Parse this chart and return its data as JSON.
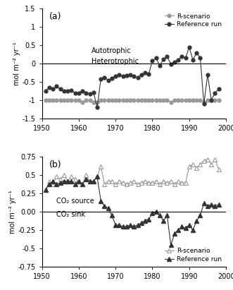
{
  "panel_a": {
    "label": "(a)",
    "ylabel": "mol m⁻² yr⁻¹",
    "ylim": [
      -1.5,
      1.5
    ],
    "yticks": [
      -1.5,
      -1.0,
      -0.5,
      0.0,
      0.5,
      1.0,
      1.5
    ],
    "xlim": [
      1950,
      2000
    ],
    "xticks": [
      1950,
      1960,
      1970,
      1980,
      1990,
      2000
    ],
    "hline": 0.0,
    "autotrophic_label": "Autotrophic",
    "heterotrophic_label": "Heterotrophic",
    "ref_years": [
      1951,
      1952,
      1953,
      1954,
      1955,
      1956,
      1957,
      1958,
      1959,
      1960,
      1961,
      1962,
      1963,
      1964,
      1965,
      1966,
      1967,
      1968,
      1969,
      1970,
      1971,
      1972,
      1973,
      1974,
      1975,
      1976,
      1977,
      1978,
      1979,
      1980,
      1981,
      1982,
      1983,
      1984,
      1985,
      1986,
      1987,
      1988,
      1989,
      1990,
      1991,
      1992,
      1993,
      1994,
      1995,
      1996,
      1997,
      1998
    ],
    "ref_values": [
      -0.75,
      -0.65,
      -0.7,
      -0.62,
      -0.7,
      -0.75,
      -0.75,
      -0.72,
      -0.8,
      -0.8,
      -0.75,
      -0.8,
      -0.82,
      -0.78,
      -1.2,
      -0.42,
      -0.38,
      -0.45,
      -0.4,
      -0.35,
      -0.3,
      -0.35,
      -0.32,
      -0.3,
      -0.35,
      -0.38,
      -0.3,
      -0.25,
      -0.28,
      0.08,
      0.15,
      -0.05,
      0.12,
      0.2,
      -0.02,
      0.05,
      0.1,
      0.2,
      0.15,
      0.45,
      0.1,
      0.3,
      0.15,
      -1.1,
      -0.3,
      -1.0,
      -0.8,
      -0.7
    ],
    "rscen_years": [
      1951,
      1952,
      1953,
      1954,
      1955,
      1956,
      1957,
      1958,
      1959,
      1960,
      1961,
      1962,
      1963,
      1964,
      1965,
      1966,
      1967,
      1968,
      1969,
      1970,
      1971,
      1972,
      1973,
      1974,
      1975,
      1976,
      1977,
      1978,
      1979,
      1980,
      1981,
      1982,
      1983,
      1984,
      1985,
      1986,
      1987,
      1988,
      1989,
      1990,
      1991,
      1992,
      1993,
      1994,
      1995,
      1996,
      1997,
      1998
    ],
    "rscen_values": [
      -1.0,
      -1.0,
      -1.0,
      -1.0,
      -1.0,
      -1.0,
      -1.0,
      -1.0,
      -1.0,
      -1.0,
      -1.05,
      -1.0,
      -1.0,
      -1.05,
      -1.05,
      -1.0,
      -1.0,
      -1.0,
      -1.0,
      -1.0,
      -1.0,
      -1.0,
      -1.0,
      -1.0,
      -1.0,
      -1.0,
      -1.0,
      -1.0,
      -1.0,
      -1.0,
      -1.0,
      -1.0,
      -1.0,
      -1.0,
      -1.05,
      -1.0,
      -1.0,
      -1.0,
      -1.0,
      -1.0,
      -1.0,
      -1.0,
      -1.0,
      -1.05,
      -1.0,
      -1.0,
      -1.0,
      -1.0
    ],
    "ref_color": "#333333",
    "rscen_color": "#999999",
    "ref_label": "Reference run",
    "rscen_label": "R-scenario"
  },
  "panel_b": {
    "label": "(b)",
    "ylabel": "mol m⁻² yr⁻¹",
    "ylim": [
      -0.75,
      0.75
    ],
    "yticks": [
      -0.75,
      -0.5,
      -0.25,
      0.0,
      0.25,
      0.5,
      0.75
    ],
    "xlim": [
      1950,
      2000
    ],
    "xticks": [
      1950,
      1960,
      1970,
      1980,
      1990,
      2000
    ],
    "hline": 0.0,
    "source_label": "CO₂ source",
    "sink_label": "CO₂ sink",
    "ref_years": [
      1951,
      1952,
      1953,
      1954,
      1955,
      1956,
      1957,
      1958,
      1959,
      1960,
      1961,
      1962,
      1963,
      1964,
      1965,
      1966,
      1967,
      1968,
      1969,
      1970,
      1971,
      1972,
      1973,
      1974,
      1975,
      1976,
      1977,
      1978,
      1979,
      1980,
      1981,
      1982,
      1983,
      1984,
      1985,
      1986,
      1987,
      1988,
      1989,
      1990,
      1991,
      1992,
      1993,
      1994,
      1995,
      1996,
      1997,
      1998
    ],
    "ref_values": [
      0.3,
      0.38,
      0.42,
      0.38,
      0.4,
      0.42,
      0.42,
      0.42,
      0.38,
      0.42,
      0.38,
      0.45,
      0.42,
      0.42,
      0.48,
      0.15,
      0.08,
      0.05,
      -0.05,
      -0.18,
      -0.18,
      -0.2,
      -0.2,
      -0.18,
      -0.2,
      -0.18,
      -0.15,
      -0.12,
      -0.1,
      -0.02,
      0.0,
      -0.05,
      -0.12,
      -0.05,
      -0.45,
      -0.3,
      -0.25,
      -0.2,
      -0.22,
      -0.18,
      -0.25,
      -0.12,
      -0.05,
      0.12,
      0.08,
      0.1,
      0.08,
      0.1
    ],
    "rscen_years": [
      1951,
      1952,
      1953,
      1954,
      1955,
      1956,
      1957,
      1958,
      1959,
      1960,
      1961,
      1962,
      1963,
      1964,
      1965,
      1966,
      1967,
      1968,
      1969,
      1970,
      1971,
      1972,
      1973,
      1974,
      1975,
      1976,
      1977,
      1978,
      1979,
      1980,
      1981,
      1982,
      1983,
      1984,
      1985,
      1986,
      1987,
      1988,
      1989,
      1990,
      1991,
      1992,
      1993,
      1994,
      1995,
      1996,
      1997,
      1998
    ],
    "rscen_values": [
      0.3,
      0.42,
      0.38,
      0.48,
      0.45,
      0.5,
      0.42,
      0.48,
      0.45,
      0.42,
      0.38,
      0.5,
      0.42,
      0.42,
      0.48,
      0.62,
      0.38,
      0.42,
      0.42,
      0.38,
      0.42,
      0.4,
      0.38,
      0.4,
      0.42,
      0.38,
      0.4,
      0.42,
      0.4,
      0.4,
      0.42,
      0.38,
      0.42,
      0.4,
      0.42,
      0.38,
      0.42,
      0.4,
      0.4,
      0.62,
      0.65,
      0.6,
      0.65,
      0.7,
      0.72,
      0.65,
      0.72,
      0.58
    ],
    "ref_color": "#333333",
    "rscen_color": "#999999",
    "ref_label": "Reference run",
    "rscen_label": "R-scenario"
  }
}
